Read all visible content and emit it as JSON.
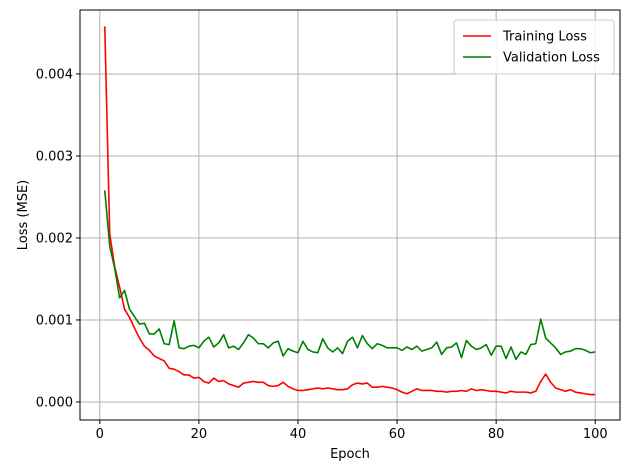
{
  "chart_data": {
    "type": "line",
    "title": "",
    "xlabel": "Epoch",
    "ylabel": "Loss (MSE)",
    "xlim": [
      -4,
      105
    ],
    "ylim": [
      -0.00022,
      0.00478
    ],
    "xticks": [
      0,
      20,
      40,
      60,
      80,
      100
    ],
    "xtick_labels": [
      "0",
      "20",
      "40",
      "60",
      "80",
      "100"
    ],
    "yticks": [
      0.0,
      0.001,
      0.002,
      0.003,
      0.004
    ],
    "ytick_labels": [
      "0.000",
      "0.001",
      "0.002",
      "0.003",
      "0.004"
    ],
    "grid": true,
    "legend": "top-right",
    "x": [
      1,
      2,
      3,
      4,
      5,
      6,
      7,
      8,
      9,
      10,
      11,
      12,
      13,
      14,
      15,
      16,
      17,
      18,
      19,
      20,
      21,
      22,
      23,
      24,
      25,
      26,
      27,
      28,
      29,
      30,
      31,
      32,
      33,
      34,
      35,
      36,
      37,
      38,
      39,
      40,
      41,
      42,
      43,
      44,
      45,
      46,
      47,
      48,
      49,
      50,
      51,
      52,
      53,
      54,
      55,
      56,
      57,
      58,
      59,
      60,
      61,
      62,
      63,
      64,
      65,
      66,
      67,
      68,
      69,
      70,
      71,
      72,
      73,
      74,
      75,
      76,
      77,
      78,
      79,
      80,
      81,
      82,
      83,
      84,
      85,
      86,
      87,
      88,
      89,
      90,
      91,
      92,
      93,
      94,
      95,
      96,
      97,
      98,
      99,
      100
    ],
    "series": [
      {
        "name": "Training Loss",
        "color": "#ff0000",
        "values": [
          0.00458,
          0.00205,
          0.00165,
          0.0014,
          0.00113,
          0.00103,
          0.0009,
          0.00078,
          0.00068,
          0.00063,
          0.00056,
          0.00053,
          0.0005,
          0.00041,
          0.0004,
          0.00037,
          0.00033,
          0.00033,
          0.00029,
          0.0003,
          0.00025,
          0.00023,
          0.00029,
          0.00025,
          0.00026,
          0.00022,
          0.0002,
          0.00018,
          0.00023,
          0.00024,
          0.00025,
          0.00024,
          0.00024,
          0.0002,
          0.00019,
          0.0002,
          0.00024,
          0.00019,
          0.00016,
          0.00014,
          0.00014,
          0.00015,
          0.00016,
          0.00017,
          0.00016,
          0.00017,
          0.00016,
          0.00015,
          0.00015,
          0.00016,
          0.00021,
          0.00023,
          0.00022,
          0.00023,
          0.00018,
          0.00018,
          0.00019,
          0.00018,
          0.00017,
          0.00015,
          0.00012,
          0.0001,
          0.00013,
          0.00016,
          0.00014,
          0.00014,
          0.00014,
          0.00013,
          0.00013,
          0.00012,
          0.00013,
          0.00013,
          0.00014,
          0.00013,
          0.00016,
          0.00014,
          0.00015,
          0.00014,
          0.00013,
          0.00013,
          0.00012,
          0.00011,
          0.00013,
          0.00012,
          0.00012,
          0.00012,
          0.00011,
          0.00013,
          0.00025,
          0.00034,
          0.00024,
          0.00017,
          0.00015,
          0.00013,
          0.00015,
          0.00012,
          0.00011,
          0.0001,
          9e-05,
          9e-05
        ]
      },
      {
        "name": "Validation Loss",
        "color": "#008000",
        "values": [
          0.00258,
          0.0019,
          0.00163,
          0.00127,
          0.00136,
          0.00113,
          0.00104,
          0.00095,
          0.00096,
          0.00083,
          0.00083,
          0.00089,
          0.00071,
          0.0007,
          0.00099,
          0.00066,
          0.00065,
          0.00068,
          0.00069,
          0.00066,
          0.00074,
          0.00079,
          0.00067,
          0.00072,
          0.00082,
          0.00066,
          0.00068,
          0.00064,
          0.00072,
          0.00082,
          0.00078,
          0.00071,
          0.00071,
          0.00066,
          0.00072,
          0.00074,
          0.00056,
          0.00065,
          0.00062,
          0.0006,
          0.00074,
          0.00064,
          0.00061,
          0.0006,
          0.00077,
          0.00066,
          0.00061,
          0.00066,
          0.00059,
          0.00074,
          0.00079,
          0.00066,
          0.00081,
          0.00071,
          0.00065,
          0.00071,
          0.00069,
          0.00066,
          0.00066,
          0.00066,
          0.00063,
          0.00067,
          0.00064,
          0.00068,
          0.00062,
          0.00064,
          0.00066,
          0.00073,
          0.00058,
          0.00066,
          0.00067,
          0.00072,
          0.00054,
          0.00075,
          0.00068,
          0.00064,
          0.00066,
          0.0007,
          0.00057,
          0.00068,
          0.00068,
          0.00053,
          0.00067,
          0.00052,
          0.00061,
          0.00058,
          0.0007,
          0.00071,
          0.00101,
          0.00078,
          0.00072,
          0.00066,
          0.00058,
          0.00061,
          0.00062,
          0.00065,
          0.00065,
          0.00063,
          0.0006,
          0.00061
        ]
      }
    ]
  }
}
